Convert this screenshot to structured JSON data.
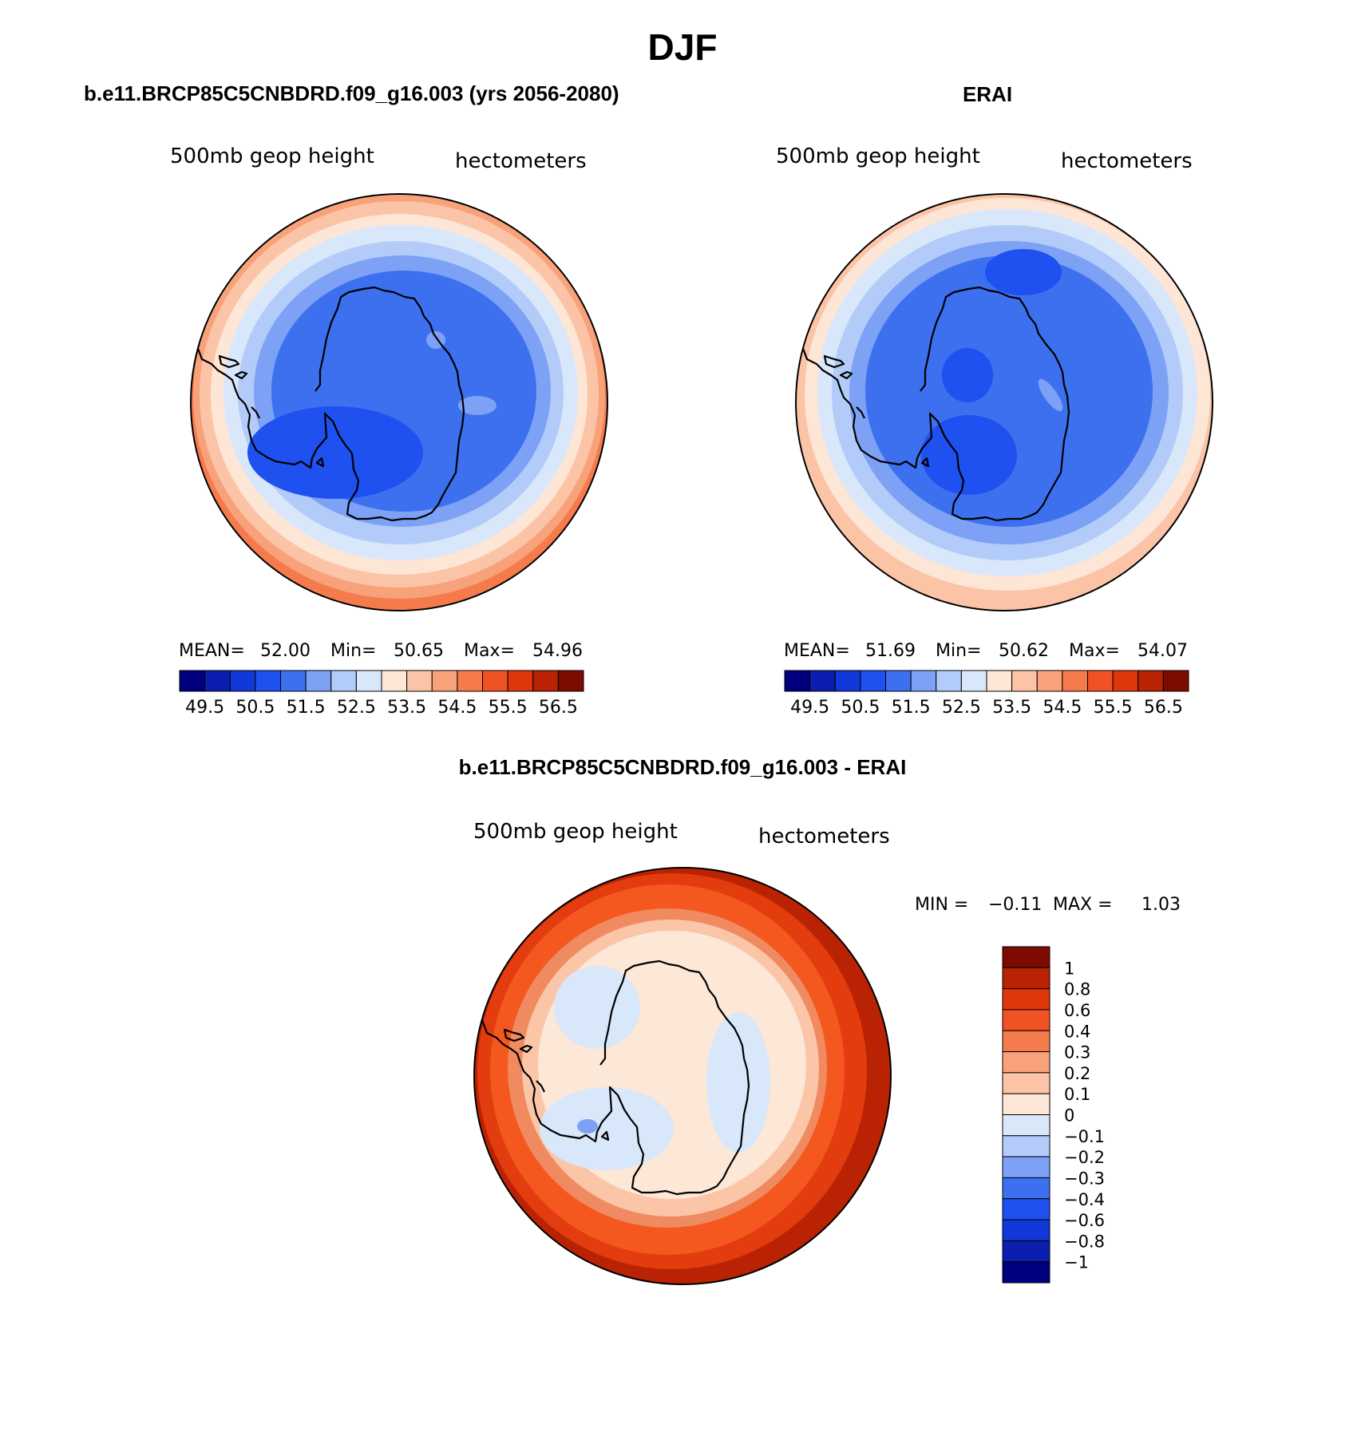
{
  "title": "DJF",
  "panels": {
    "left": {
      "title": "b.e11.BRCP85C5CNBDRD.f09_g16.003 (yrs 2056-2080)",
      "variable": "500mb geop height",
      "units": "hectometers",
      "stats": {
        "mean_label": "MEAN=",
        "mean": "52.00",
        "min_label": "Min=",
        "min": "50.65",
        "max_label": "Max=",
        "max": "54.96"
      }
    },
    "right": {
      "title": "ERAI",
      "variable": "500mb geop height",
      "units": "hectometers",
      "stats": {
        "mean_label": "MEAN=",
        "mean": "51.69",
        "min_label": "Min=",
        "min": "50.62",
        "max_label": "Max=",
        "max": "54.07"
      }
    },
    "bottom": {
      "title": "b.e11.BRCP85C5CNBDRD.f09_g16.003 - ERAI",
      "variable": "500mb geop height",
      "units": "hectometers",
      "min_label": "MIN =",
      "min": "−0.11",
      "max_label": "MAX =",
      "max": "1.03"
    }
  },
  "colors": {
    "levels": [
      "#00007f",
      "#0a1faf",
      "#1138d8",
      "#1f50f0",
      "#3d70ef",
      "#7da1f5",
      "#b3cbf9",
      "#d9e7fb",
      "#fde6d5",
      "#fbc4a6",
      "#f8a27b",
      "#f57b4c",
      "#f05223",
      "#e0360c",
      "#b92303",
      "#7d0b00"
    ],
    "ocean_pos": [
      "#e23c0f",
      "#f5581f",
      "#f08a60",
      "#fbc5a8",
      "#fde7d6"
    ]
  },
  "chart_data": [
    {
      "type": "polar contour map",
      "title": "b.e11.BRCP85C5CNBDRD.f09_g16.003 (yrs 2056-2080)",
      "variable": "500mb geop height",
      "units": "hectometers",
      "mean": 52.0,
      "min": 50.65,
      "max": 54.96,
      "colorbar_ticks": [
        "49.5",
        "50.5",
        "51.5",
        "52.5",
        "53.5",
        "54.5",
        "55.5",
        "56.5"
      ]
    },
    {
      "type": "polar contour map",
      "title": "ERAI",
      "variable": "500mb geop height",
      "units": "hectometers",
      "mean": 51.69,
      "min": 50.62,
      "max": 54.07,
      "colorbar_ticks": [
        "49.5",
        "50.5",
        "51.5",
        "52.5",
        "53.5",
        "54.5",
        "55.5",
        "56.5"
      ]
    },
    {
      "type": "polar contour map",
      "title": "b.e11.BRCP85C5CNBDRD.f09_g16.003 - ERAI",
      "variable": "500mb geop height",
      "units": "hectometers",
      "min": -0.11,
      "max": 1.03,
      "colorbar_ticks": [
        "1",
        "0.8",
        "0.6",
        "0.4",
        "0.3",
        "0.2",
        "0.1",
        "0",
        "−0.1",
        "−0.2",
        "−0.3",
        "−0.4",
        "−0.6",
        "−0.8",
        "−1"
      ]
    }
  ]
}
